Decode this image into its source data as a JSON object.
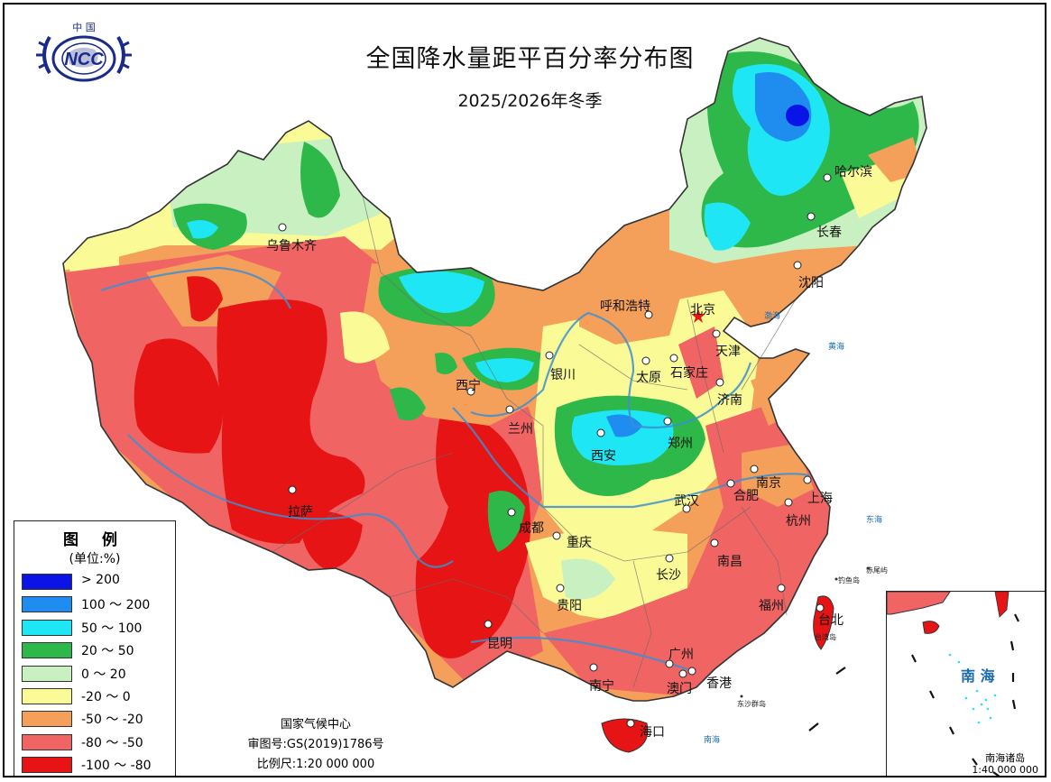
{
  "title": "全国降水量距平百分率分布图",
  "subtitle": "2025/2026年冬季",
  "logo_text": "NCC",
  "logo_top_text": "中 国",
  "legend": {
    "title": "图 例",
    "unit": "(单位:%)",
    "items": [
      {
        "label": "> 200",
        "color": "#0a14e6"
      },
      {
        "label": "100 ～ 200",
        "color": "#1f8cf0"
      },
      {
        "label": "50 ～ 100",
        "color": "#1ee6f5"
      },
      {
        "label": "20 ～ 50",
        "color": "#2fb84a"
      },
      {
        "label": "0 ～ 20",
        "color": "#c8f0c0"
      },
      {
        "label": "-20 ～ 0",
        "color": "#fafa96"
      },
      {
        "label": "-50 ～ -20",
        "color": "#f5a05a"
      },
      {
        "label": "-80 ～ -50",
        "color": "#f06464"
      },
      {
        "label": "-100 ～ -80",
        "color": "#e61414"
      }
    ]
  },
  "credit": {
    "org": "国家气候中心",
    "approval": "审图号:GS(2019)1786号",
    "scale": "比例尺:1:20 000 000"
  },
  "cities": [
    {
      "name": "乌鲁木齐",
      "id": "urumqi"
    },
    {
      "name": "哈尔滨",
      "id": "harbin"
    },
    {
      "name": "长春",
      "id": "changchun"
    },
    {
      "name": "沈阳",
      "id": "shenyang"
    },
    {
      "name": "呼和浩特",
      "id": "hohhot"
    },
    {
      "name": "北京",
      "id": "beijing"
    },
    {
      "name": "天津",
      "id": "tianjin"
    },
    {
      "name": "银川",
      "id": "yinchuan"
    },
    {
      "name": "太原",
      "id": "taiyuan"
    },
    {
      "name": "石家庄",
      "id": "shijiazhuang"
    },
    {
      "name": "西宁",
      "id": "xining"
    },
    {
      "name": "济南",
      "id": "jinan"
    },
    {
      "name": "兰州",
      "id": "lanzhou"
    },
    {
      "name": "西安",
      "id": "xian"
    },
    {
      "name": "郑州",
      "id": "zhengzhou"
    },
    {
      "name": "南京",
      "id": "nanjing"
    },
    {
      "name": "合肥",
      "id": "hefei"
    },
    {
      "name": "上海",
      "id": "shanghai"
    },
    {
      "name": "拉萨",
      "id": "lhasa"
    },
    {
      "name": "成都",
      "id": "chengdu"
    },
    {
      "name": "武汉",
      "id": "wuhan"
    },
    {
      "name": "杭州",
      "id": "hangzhou"
    },
    {
      "name": "重庆",
      "id": "chongqing"
    },
    {
      "name": "南昌",
      "id": "nanchang"
    },
    {
      "name": "长沙",
      "id": "changsha"
    },
    {
      "name": "贵阳",
      "id": "guiyang"
    },
    {
      "name": "福州",
      "id": "fuzhou"
    },
    {
      "name": "台北",
      "id": "taipei"
    },
    {
      "name": "昆明",
      "id": "kunming"
    },
    {
      "name": "广州",
      "id": "guangzhou"
    },
    {
      "name": "南宁",
      "id": "nanning"
    },
    {
      "name": "澳门",
      "id": "macau"
    },
    {
      "name": "香港",
      "id": "hongkong"
    },
    {
      "name": "海口",
      "id": "haikou"
    }
  ],
  "seas": {
    "bohai": "渤海",
    "yellow_sea": "黄海",
    "east_china_sea": "东海",
    "south_china_sea": "南海",
    "south_china_sea_main": "南海"
  },
  "islands": {
    "chiwei": "赤尾屿",
    "diaoyu": "钓鱼岛",
    "taiwan": "台湾岛",
    "dongsha": "东沙群岛"
  },
  "inset": {
    "sea": "南 海",
    "caption": "南海诸岛",
    "scale": "1:40 000 000"
  }
}
